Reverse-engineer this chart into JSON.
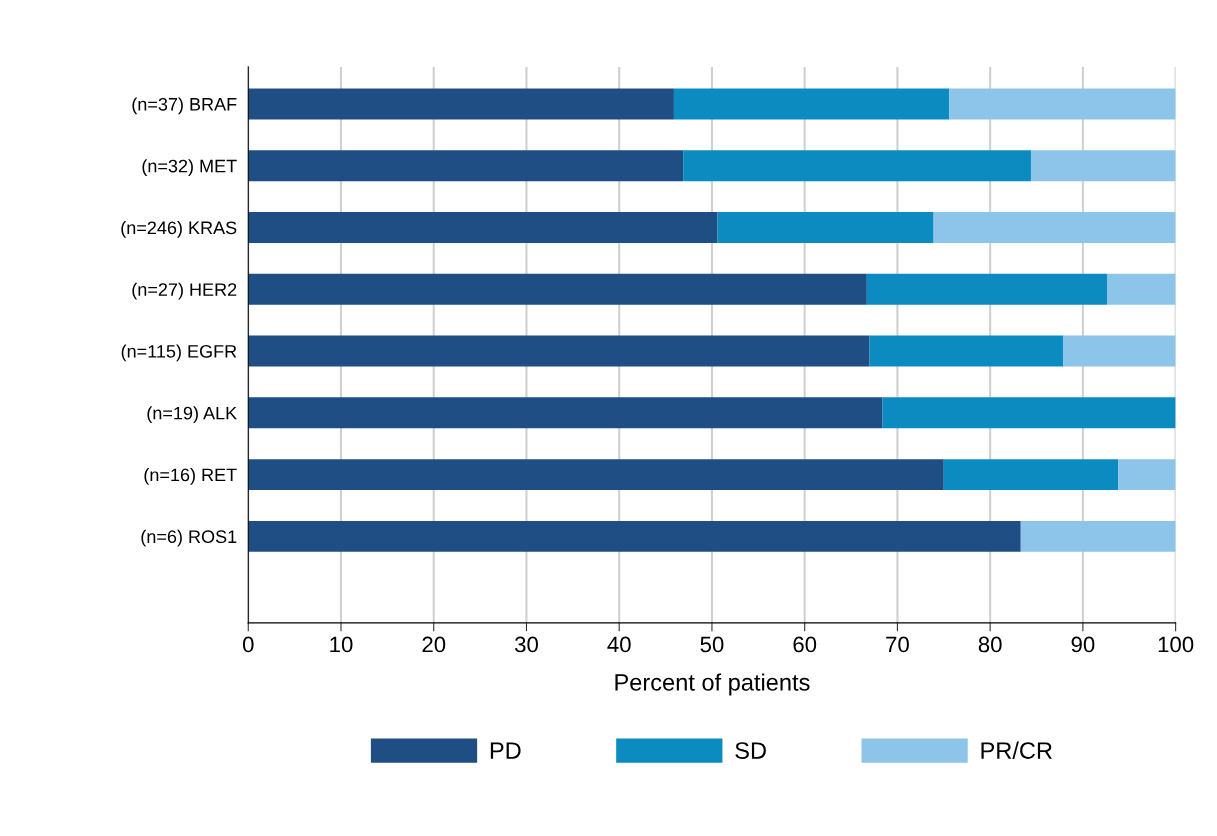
{
  "chart_data": {
    "type": "bar",
    "orientation": "horizontal",
    "stacked": true,
    "xlabel": "Percent of patients",
    "categories": [
      "(n=37) BRAF",
      "(n=32) MET",
      "(n=246) KRAS",
      "(n=27) HER2",
      "(n=115) EGFR",
      "(n=19) ALK",
      "(n=16) RET",
      "(n=6) ROS1"
    ],
    "series": [
      {
        "name": "PD",
        "color": "#1f4e85",
        "values": [
          45.9,
          46.9,
          50.6,
          66.7,
          67.0,
          68.4,
          75.0,
          83.3
        ]
      },
      {
        "name": "SD",
        "color": "#0b8bc0",
        "values": [
          29.7,
          37.5,
          23.3,
          25.9,
          20.9,
          31.6,
          18.8,
          0
        ]
      },
      {
        "name": "PR/CR",
        "color": "#8cc4ea",
        "values": [
          24.4,
          15.6,
          26.1,
          7.4,
          12.1,
          0,
          6.2,
          16.7
        ]
      }
    ],
    "xlim": [
      0,
      100
    ],
    "xticks": [
      0,
      10,
      20,
      30,
      40,
      50,
      60,
      70,
      80,
      90,
      100
    ],
    "grid": "x",
    "legend": "bottom"
  }
}
